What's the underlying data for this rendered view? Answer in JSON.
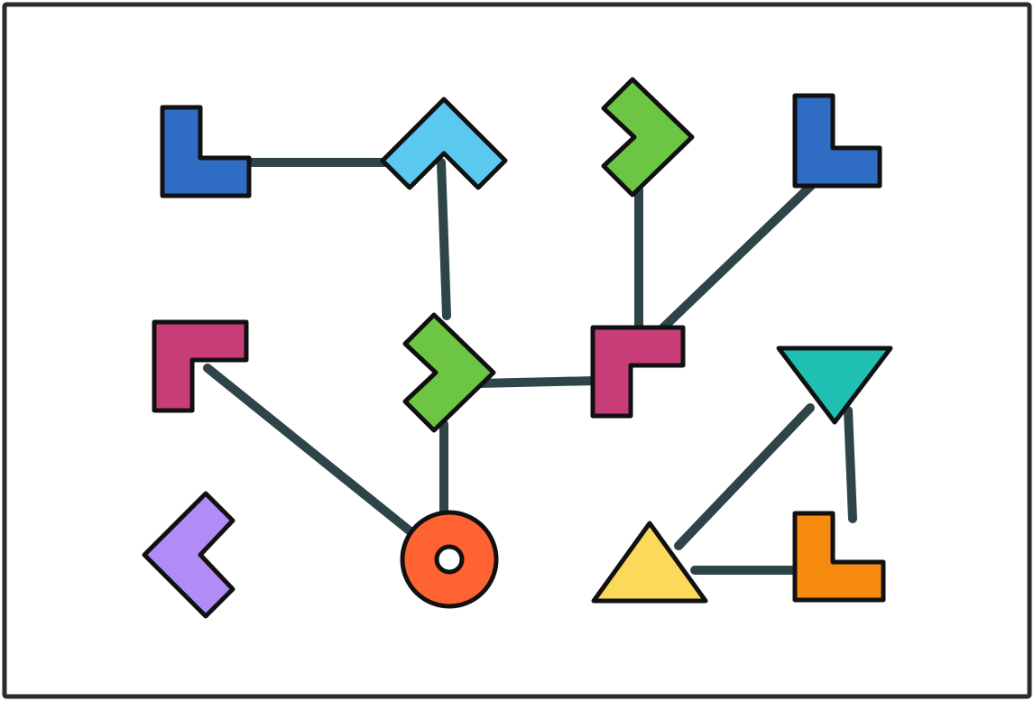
{
  "diagram": {
    "type": "graph",
    "colors": {
      "background": "#ffffff",
      "frame": "#2b2b2b",
      "edge": "#2e4449",
      "outline": "#111111",
      "blue": "#2f6cc4",
      "light_blue": "#5bc8ef",
      "green": "#6cc644",
      "pink": "#c73d78",
      "purple": "#b18cf7",
      "orange_red": "#ff6331",
      "teal": "#1fbfb2",
      "yellow": "#fbd95b",
      "orange": "#f68b0f"
    },
    "nodes": [
      {
        "id": "blue-l-left",
        "shape": "l-shape",
        "color": "blue"
      },
      {
        "id": "light-blue-chevron",
        "shape": "chevron-up",
        "color": "light_blue"
      },
      {
        "id": "green-chevron-top",
        "shape": "chevron-right",
        "color": "green"
      },
      {
        "id": "blue-l-right",
        "shape": "l-shape",
        "color": "blue"
      },
      {
        "id": "pink-corner-left",
        "shape": "corner",
        "color": "pink"
      },
      {
        "id": "green-chevron-middle",
        "shape": "chevron-right",
        "color": "green"
      },
      {
        "id": "pink-corner-middle",
        "shape": "corner",
        "color": "pink"
      },
      {
        "id": "teal-triangle",
        "shape": "triangle-down",
        "color": "teal"
      },
      {
        "id": "purple-chevron",
        "shape": "chevron-left",
        "color": "purple"
      },
      {
        "id": "orange-ring",
        "shape": "ring",
        "color": "orange_red"
      },
      {
        "id": "yellow-triangle",
        "shape": "triangle-up",
        "color": "yellow"
      },
      {
        "id": "orange-l",
        "shape": "l-shape",
        "color": "orange"
      }
    ],
    "edges": [
      {
        "from": "blue-l-left",
        "to": "light-blue-chevron"
      },
      {
        "from": "light-blue-chevron",
        "to": "green-chevron-middle"
      },
      {
        "from": "green-chevron-top",
        "to": "pink-corner-middle"
      },
      {
        "from": "blue-l-right",
        "to": "pink-corner-middle"
      },
      {
        "from": "green-chevron-middle",
        "to": "pink-corner-middle"
      },
      {
        "from": "green-chevron-middle",
        "to": "orange-ring"
      },
      {
        "from": "pink-corner-left",
        "to": "orange-ring"
      },
      {
        "from": "teal-triangle",
        "to": "yellow-triangle"
      },
      {
        "from": "teal-triangle",
        "to": "orange-l"
      },
      {
        "from": "yellow-triangle",
        "to": "orange-l"
      }
    ]
  }
}
